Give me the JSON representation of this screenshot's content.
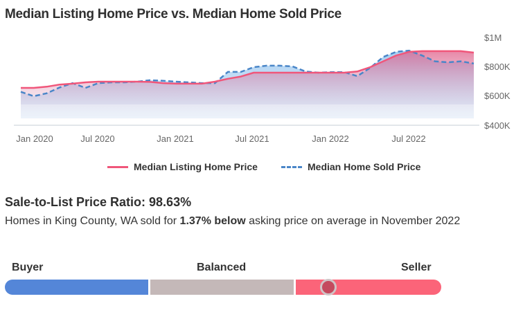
{
  "header": {
    "title": "Median Listing Home Price vs. Median Home Sold Price"
  },
  "chart_data": {
    "type": "line",
    "title": "Median Listing Home Price vs. Median Home Sold Price",
    "xlabel": "",
    "ylabel": "",
    "ylim": [
      400000,
      1000000
    ],
    "grid": false,
    "legend_position": "bottom",
    "x_tick_labels": [
      "Jan 2020",
      "Jul 2020",
      "Jan 2021",
      "Jul 2021",
      "Jan 2022",
      "Jul 2022"
    ],
    "y_tick_labels": [
      "$1M",
      "$800K",
      "$600K",
      "$400K"
    ],
    "y_tick_values": [
      1000000,
      800000,
      600000,
      400000
    ],
    "x": [
      "Dec 2019",
      "Jan 2020",
      "Feb 2020",
      "Mar 2020",
      "Apr 2020",
      "May 2020",
      "Jun 2020",
      "Jul 2020",
      "Aug 2020",
      "Sep 2020",
      "Oct 2020",
      "Nov 2020",
      "Dec 2020",
      "Jan 2021",
      "Feb 2021",
      "Mar 2021",
      "Apr 2021",
      "May 2021",
      "Jun 2021",
      "Jul 2021",
      "Aug 2021",
      "Sep 2021",
      "Oct 2021",
      "Nov 2021",
      "Dec 2021",
      "Jan 2022",
      "Feb 2022",
      "Mar 2022",
      "Apr 2022",
      "May 2022",
      "Jun 2022",
      "Jul 2022",
      "Aug 2022",
      "Sep 2022",
      "Oct 2022",
      "Nov 2022"
    ],
    "series": [
      {
        "name": "Median Listing Home Price",
        "style": "solid",
        "color": "#f0567a",
        "values": [
          657000,
          657000,
          665000,
          680000,
          686000,
          695000,
          700000,
          700000,
          700000,
          700000,
          698000,
          690000,
          686000,
          686000,
          686000,
          700000,
          720000,
          735000,
          762000,
          762000,
          762000,
          762000,
          762000,
          762000,
          762000,
          762000,
          770000,
          800000,
          840000,
          880000,
          905000,
          910000,
          910000,
          910000,
          910000,
          900000
        ]
      },
      {
        "name": "Median Home Sold Price",
        "style": "dashed",
        "color": "#4a86c8",
        "values": [
          630000,
          600000,
          620000,
          660000,
          690000,
          657000,
          690000,
          695000,
          695000,
          700000,
          710000,
          706000,
          700000,
          695000,
          690000,
          690000,
          767000,
          767000,
          800000,
          810000,
          810000,
          805000,
          770000,
          762000,
          765000,
          765000,
          738000,
          795000,
          870000,
          905000,
          914000,
          880000,
          840000,
          833000,
          840000,
          825000
        ]
      }
    ]
  },
  "legend": {
    "items": [
      {
        "label": "Median Listing Home Price",
        "color": "#f0567a",
        "style": "solid"
      },
      {
        "label": "Median Home Sold Price",
        "color": "#4a86c8",
        "style": "dashed"
      }
    ]
  },
  "ratio": {
    "title": "Sale-to-List Price Ratio: 98.63%",
    "desc_prefix": "Homes in King County, WA sold for ",
    "desc_bold": "1.37% below",
    "desc_suffix": " asking price on average in November 2022"
  },
  "market": {
    "labels": {
      "buyer": "Buyer",
      "balanced": "Balanced",
      "seller": "Seller"
    },
    "colors": {
      "buyer": "#5486d8",
      "balanced": "#c4b8b8",
      "seller": "#fb6479",
      "knob": "#c44a5e"
    },
    "indicator_position_pct": 74.2
  }
}
